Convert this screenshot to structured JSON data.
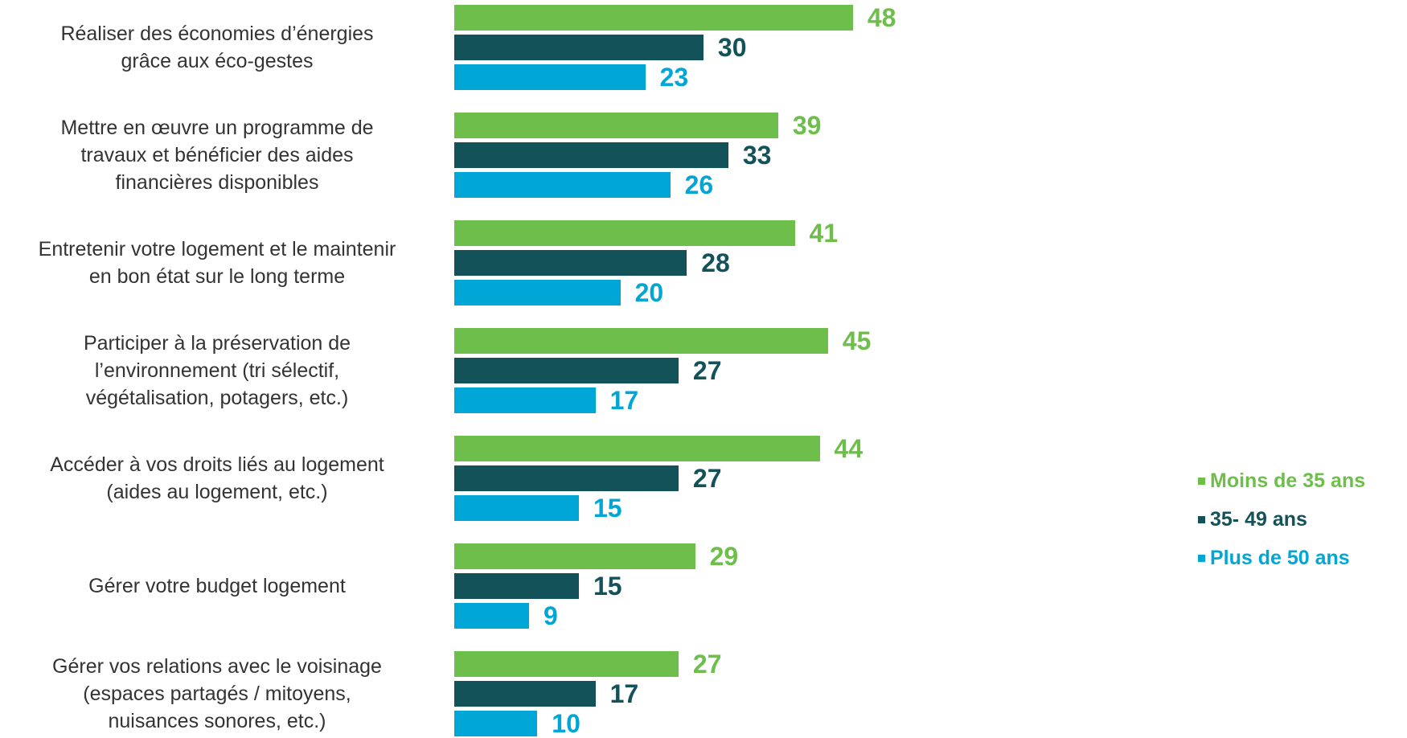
{
  "chart_data": {
    "type": "bar",
    "orientation": "horizontal",
    "categories": [
      "Réaliser des économies d’énergies\ngrâce aux éco-gestes",
      "Mettre en œuvre un programme de\ntravaux et bénéficier des aides\nfinancières disponibles",
      "Entretenir votre logement et le maintenir\nen bon état sur le long terme",
      "Participer à la préservation de\nl’environnement (tri sélectif,\nvégétalisation, potagers, etc.)",
      "Accéder à vos droits liés au logement\n(aides au logement, etc.)",
      "Gérer votre budget logement",
      "Gérer vos relations avec le voisinage\n(espaces partagés / mitoyens,\nnuisances sonores, etc.)"
    ],
    "series": [
      {
        "name": "Moins de 35 ans",
        "color": "#6dbe4b",
        "values": [
          48,
          39,
          41,
          45,
          44,
          29,
          27
        ]
      },
      {
        "name": "35- 49 ans",
        "color": "#14525a",
        "values": [
          30,
          33,
          28,
          27,
          27,
          15,
          17
        ]
      },
      {
        "name": "Plus de 50 ans",
        "color": "#00a6d6",
        "values": [
          23,
          26,
          20,
          17,
          15,
          9,
          10
        ]
      }
    ],
    "xlim": [
      0,
      60
    ],
    "grid": false,
    "legend_position": "right"
  }
}
